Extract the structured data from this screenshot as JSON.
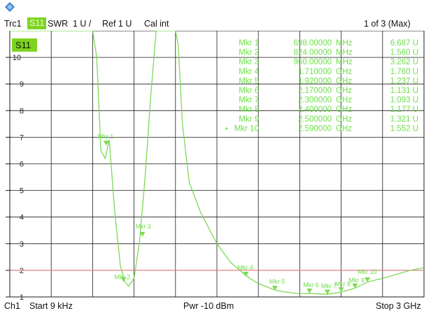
{
  "header": {
    "trace": "Trc1",
    "param": "S11",
    "format": "SWR",
    "scale": "1 U /",
    "ref": "Ref 1 U",
    "cal": "Cal int",
    "page": "1 of 3 (Max)"
  },
  "footer": {
    "channel": "Ch1",
    "start": "Start  9 kHz",
    "power": "Pwr  -10 dBm",
    "stop": "Stop  3 GHz"
  },
  "plot_label": "S11",
  "y_ticks": [
    "1",
    "2",
    "3",
    "4",
    "5",
    "6",
    "7",
    "8",
    "9",
    "10"
  ],
  "colors": {
    "trace": "#7ed957",
    "marker_text": "#6fe04a",
    "reference_line": "#e08080",
    "grid": "#1a1a1a",
    "badge": "#7ed321"
  },
  "marker_table": [
    {
      "name": "Mkr 1",
      "freq": "698.00000",
      "unit": "MHz",
      "value": "6.687  U",
      "active": false
    },
    {
      "name": "Mkr 2",
      "freq": "824.00000",
      "unit": "MHz",
      "value": "1.560  U",
      "active": false
    },
    {
      "name": "Mkr 3",
      "freq": "960.00000",
      "unit": "MHz",
      "value": "3.262  U",
      "active": false
    },
    {
      "name": "Mkr 4",
      "freq": "1.710000",
      "unit": "GHz",
      "value": "1.760  U",
      "active": false
    },
    {
      "name": "Mkr 5",
      "freq": "1.920000",
      "unit": "GHz",
      "value": "1.237  U",
      "active": false
    },
    {
      "name": "Mkr 6",
      "freq": "2.170000",
      "unit": "GHz",
      "value": "1.131  U",
      "active": false
    },
    {
      "name": "Mkr 7",
      "freq": "2.300000",
      "unit": "GHz",
      "value": "1.093  U",
      "active": false
    },
    {
      "name": "Mkr 8",
      "freq": "2.400000",
      "unit": "GHz",
      "value": "1.177  U",
      "active": false
    },
    {
      "name": "Mkr 9",
      "freq": "2.500000",
      "unit": "GHz",
      "value": "1.321  U",
      "active": false
    },
    {
      "name": "Mkr 10",
      "freq": "2.590000",
      "unit": "GHz",
      "value": "1.552  U",
      "active": true
    }
  ],
  "chart_data": {
    "type": "line",
    "x_unit": "GHz",
    "xlim": [
      9e-06,
      3.0
    ],
    "ylim": [
      1,
      11
    ],
    "reference_level": 2,
    "series": [
      {
        "x": [
          0.0,
          0.3,
          0.38,
          0.5,
          0.6,
          0.63,
          0.66,
          0.69,
          0.72,
          0.76,
          0.8,
          0.83,
          0.86,
          0.9,
          0.94,
          0.98,
          1.02,
          1.06,
          1.1,
          1.15,
          1.2,
          1.22,
          1.25,
          1.3,
          1.38,
          1.45,
          1.5,
          1.6,
          1.71,
          1.8,
          1.92,
          2.0,
          2.1,
          2.17,
          2.3,
          2.4,
          2.5,
          2.59,
          2.7,
          2.8,
          2.9,
          3.0
        ],
        "y": [
          11,
          11,
          11,
          11,
          11,
          10.0,
          6.5,
          6.2,
          6.9,
          4.2,
          2.2,
          1.6,
          1.4,
          1.7,
          3.1,
          5.5,
          8.5,
          11,
          11,
          11,
          11,
          10.5,
          7.5,
          5.3,
          4.2,
          3.5,
          3.0,
          2.3,
          1.8,
          1.5,
          1.26,
          1.18,
          1.12,
          1.13,
          1.1,
          1.18,
          1.33,
          1.56,
          1.7,
          1.85,
          2.0,
          2.1
        ]
      }
    ],
    "markers": [
      {
        "name": "Mkr 1",
        "x": 0.698,
        "y": 6.687
      },
      {
        "name": "Mkr 2",
        "x": 0.824,
        "y": 1.56
      },
      {
        "name": "Mkr 3",
        "x": 0.96,
        "y": 3.262
      },
      {
        "name": "Mkr 4",
        "x": 1.71,
        "y": 1.76
      },
      {
        "name": "Mkr 5",
        "x": 1.92,
        "y": 1.237
      },
      {
        "name": "Mkr 6",
        "x": 2.17,
        "y": 1.131
      },
      {
        "name": "Mkr 7",
        "x": 2.3,
        "y": 1.093
      },
      {
        "name": "Mkr 8",
        "x": 2.4,
        "y": 1.177
      },
      {
        "name": "Mkr 9",
        "x": 2.5,
        "y": 1.321
      },
      {
        "name": "Mkr 10",
        "x": 2.59,
        "y": 1.552
      }
    ]
  }
}
